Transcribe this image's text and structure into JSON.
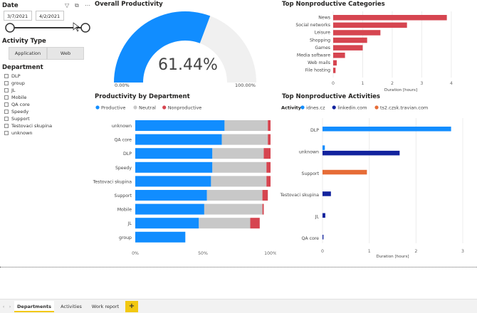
{
  "filters": {
    "date_title": "Date",
    "date_start": "3/7/2021",
    "date_end": "4/2/2021",
    "slider_start": 0.0,
    "slider_end": 1.0,
    "activity_type_title": "Activity Type",
    "activity_type_buttons": [
      "Application",
      "Web"
    ],
    "department_title": "Department",
    "departments": [
      "DLP",
      "group",
      "JL",
      "Mobile",
      "QA core",
      "Speedy",
      "Support",
      "Testovaci skupina",
      "unknown"
    ],
    "icons": [
      "filter-icon",
      "focus-mode-icon",
      "more-options-icon"
    ]
  },
  "overall": {
    "title": "Overall Productivity",
    "value_label": "61.44%",
    "min_label": "0.00%",
    "max_label": "100.00%",
    "colors": {
      "fill": "#118dff",
      "track": "#f0f0f0"
    }
  },
  "tabs": {
    "items": [
      "Departments",
      "Activities",
      "Work report"
    ],
    "active": "Departments",
    "add_label": "+",
    "nav_prev": "‹",
    "nav_next": "›"
  },
  "colors": {
    "productive": "#118dff",
    "neutral": "#c8c8c8",
    "nonproductive": "#d64550",
    "idnes": "#118dff",
    "linkedin": "#12239e",
    "travian": "#e66c37",
    "accent_yellow": "#f2c811"
  },
  "chart_data": [
    {
      "type": "bar",
      "orientation": "horizontal",
      "title": "Top Nonproductive Categories",
      "categories": [
        "News",
        "Social networks",
        "Leisure",
        "Shopping",
        "Games",
        "Media software",
        "Web mails",
        "File hosting"
      ],
      "values": [
        3.85,
        2.5,
        1.6,
        1.15,
        1.0,
        0.4,
        0.12,
        0.08
      ],
      "xlabel": "Duration [hours]",
      "xticks": [
        0,
        1,
        2,
        3,
        4
      ],
      "xlim": [
        0,
        4.1
      ],
      "color": "#d64550"
    },
    {
      "type": "bar",
      "orientation": "horizontal",
      "stacked": "percent",
      "title": "Productivity by Department",
      "legend_position": "top-left",
      "categories": [
        "unknown",
        "QA core",
        "DLP",
        "Speedy",
        "Testovaci skupina",
        "Support",
        "Mobile",
        "JL",
        "group"
      ],
      "series": [
        {
          "name": "Productive",
          "values": [
            66,
            64,
            57,
            57,
            56,
            53,
            51,
            47,
            37
          ]
        },
        {
          "name": "Neutral",
          "values": [
            32,
            34,
            38,
            40,
            41,
            41,
            43,
            38,
            0
          ]
        },
        {
          "name": "Nonproductive",
          "values": [
            2,
            2,
            5,
            3,
            3,
            4,
            1,
            7,
            0
          ]
        }
      ],
      "xticks": [
        "0%",
        "50%",
        "100%"
      ],
      "xlim": [
        0,
        100
      ]
    },
    {
      "type": "bar",
      "orientation": "horizontal",
      "grouped": true,
      "title": "Top Nonproductive Activities",
      "legend_title": "Activity",
      "legend_position": "top-left",
      "categories": [
        "DLP",
        "unknown",
        "Support",
        "Testovaci skupina",
        "JL",
        "QA core"
      ],
      "series": [
        {
          "name": "idnes.cz",
          "values": [
            2.75,
            0.05,
            0,
            0,
            0,
            0
          ]
        },
        {
          "name": "linkedin.com",
          "values": [
            0,
            1.65,
            0,
            0.18,
            0.06,
            0.02
          ]
        },
        {
          "name": "ts2.czsk.travian.com",
          "values": [
            0,
            0,
            0.95,
            0,
            0,
            0
          ]
        }
      ],
      "xlabel": "Duration [hours]",
      "xticks": [
        0,
        1,
        2,
        3
      ],
      "xlim": [
        0,
        3
      ]
    }
  ]
}
